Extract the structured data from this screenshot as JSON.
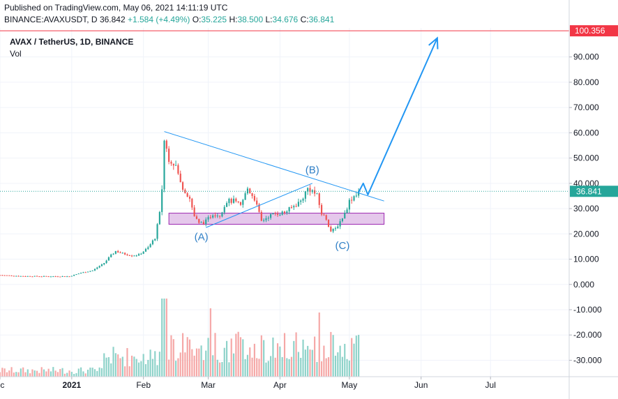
{
  "header": {
    "published": "Published on TradingView.com, May 06, 2021 14:11:19 UTC",
    "symbol_line": "BINANCE:AVAXUSDT, D",
    "last": "36.842",
    "change": "+1.584 (+4.49%)",
    "o_label": "O:",
    "o": "35.225",
    "h_label": "H:",
    "h": "38.500",
    "l_label": "L:",
    "l": "34.676",
    "c_label": "C:",
    "c": "36.841"
  },
  "chart_data": {
    "type": "candlestick",
    "title": "AVAX / TetherUS, 1D, BINANCE",
    "volume_label": "Vol",
    "y_ticks": [
      "90.000",
      "80.000",
      "70.000",
      "60.000",
      "50.000",
      "40.000",
      "30.000",
      "20.000",
      "10.000",
      "0.000",
      "-10.000",
      "-20.000",
      "-30.000"
    ],
    "y_values": [
      90,
      80,
      70,
      60,
      50,
      40,
      30,
      20,
      10,
      0,
      -10,
      -20,
      -30
    ],
    "ylim": [
      -36.5,
      101.5
    ],
    "x_ticks": [
      "ec",
      "2021",
      "Feb",
      "Mar",
      "Apr",
      "May",
      "Jun",
      "Jul"
    ],
    "x_tick_dates": [
      "2020-12-01",
      "2021-01-01",
      "2021-02-01",
      "2021-03-01",
      "2021-04-01",
      "2021-05-01",
      "2021-06-01",
      "2021-07-01"
    ],
    "xlim": [
      "2020-12-01",
      "2021-08-04"
    ],
    "target_level": "100.356",
    "target_value": 100.356,
    "current_price": "36.841",
    "current_value": 36.841,
    "support_zone": {
      "from_date": "2021-02-12",
      "to_date": "2021-05-16",
      "low": 23.8,
      "high": 28.2
    },
    "trendlines": [
      {
        "from": [
          "2021-02-10",
          60.5
        ],
        "to": [
          "2021-05-16",
          33.0
        ]
      },
      {
        "from": [
          "2021-02-28",
          22.5
        ],
        "to": [
          "2021-04-15",
          40.0
        ]
      }
    ],
    "wave_labels": [
      {
        "text": "(A)",
        "date": "2021-02-26",
        "value": 17.5
      },
      {
        "text": "(B)",
        "date": "2021-04-15",
        "value": 44.0
      },
      {
        "text": "(C)",
        "date": "2021-04-28",
        "value": 14.0
      }
    ],
    "projection": [
      [
        "2021-05-05",
        36.5
      ],
      [
        "2021-05-07",
        40.0
      ],
      [
        "2021-05-09",
        35.5
      ],
      [
        "2021-06-08",
        97.5
      ]
    ],
    "price_path": [
      [
        "2020-12-01",
        3.7
      ],
      [
        "2020-12-10",
        3.3
      ],
      [
        "2020-12-20",
        3.2
      ],
      [
        "2020-12-31",
        3.2
      ],
      [
        "2021-01-05",
        4.6
      ],
      [
        "2021-01-10",
        5.5
      ],
      [
        "2021-01-15",
        8.5
      ],
      [
        "2021-01-18",
        11.5
      ],
      [
        "2021-01-20",
        13.2
      ],
      [
        "2021-01-23",
        12.2
      ],
      [
        "2021-01-27",
        11.5
      ],
      [
        "2021-01-30",
        11.7
      ],
      [
        "2021-02-03",
        14.5
      ],
      [
        "2021-02-06",
        18.5
      ],
      [
        "2021-02-08",
        28.0
      ],
      [
        "2021-02-09",
        38.0
      ],
      [
        "2021-02-10",
        57.0
      ],
      [
        "2021-02-12",
        50.0
      ],
      [
        "2021-02-15",
        47.0
      ],
      [
        "2021-02-17",
        40.0
      ],
      [
        "2021-02-19",
        37.0
      ],
      [
        "2021-02-21",
        34.0
      ],
      [
        "2021-02-23",
        27.0
      ],
      [
        "2021-02-25",
        24.0
      ],
      [
        "2021-02-28",
        25.0
      ],
      [
        "2021-03-03",
        28.0
      ],
      [
        "2021-03-06",
        27.5
      ],
      [
        "2021-03-09",
        33.0
      ],
      [
        "2021-03-12",
        33.0
      ],
      [
        "2021-03-15",
        31.0
      ],
      [
        "2021-03-18",
        38.0
      ],
      [
        "2021-03-21",
        34.0
      ],
      [
        "2021-03-24",
        25.0
      ],
      [
        "2021-03-27",
        27.0
      ],
      [
        "2021-03-30",
        28.0
      ],
      [
        "2021-04-03",
        28.5
      ],
      [
        "2021-04-07",
        31.0
      ],
      [
        "2021-04-10",
        33.0
      ],
      [
        "2021-04-13",
        38.0
      ],
      [
        "2021-04-15",
        37.0
      ],
      [
        "2021-04-17",
        35.0
      ],
      [
        "2021-04-19",
        28.0
      ],
      [
        "2021-04-21",
        26.0
      ],
      [
        "2021-04-23",
        21.0
      ],
      [
        "2021-04-25",
        22.0
      ],
      [
        "2021-04-27",
        25.0
      ],
      [
        "2021-04-29",
        28.0
      ],
      [
        "2021-05-01",
        33.0
      ],
      [
        "2021-05-03",
        35.0
      ],
      [
        "2021-05-05",
        36.84
      ]
    ]
  },
  "colors": {
    "up": "#26a69a",
    "down": "#ef5350",
    "vol_up": "#8dd2c9",
    "vol_down": "#f5a7a6",
    "accent": "#2196f3",
    "target": "#f23645",
    "zone_fill": "#e1bee7",
    "zone_stroke": "#9c27b0",
    "grid": "#f0f3fa",
    "axis_text": "#131722"
  }
}
